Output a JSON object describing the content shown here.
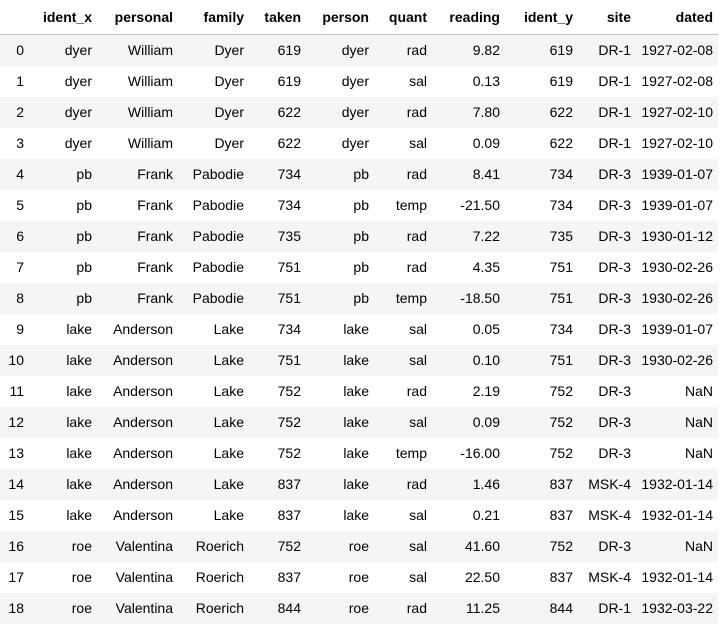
{
  "table": {
    "columns": [
      "",
      "ident_x",
      "personal",
      "family",
      "taken",
      "person",
      "quant",
      "reading",
      "ident_y",
      "site",
      "dated"
    ],
    "rows": [
      [
        "0",
        "dyer",
        "William",
        "Dyer",
        "619",
        "dyer",
        "rad",
        "9.82",
        "619",
        "DR-1",
        "1927-02-08"
      ],
      [
        "1",
        "dyer",
        "William",
        "Dyer",
        "619",
        "dyer",
        "sal",
        "0.13",
        "619",
        "DR-1",
        "1927-02-08"
      ],
      [
        "2",
        "dyer",
        "William",
        "Dyer",
        "622",
        "dyer",
        "rad",
        "7.80",
        "622",
        "DR-1",
        "1927-02-10"
      ],
      [
        "3",
        "dyer",
        "William",
        "Dyer",
        "622",
        "dyer",
        "sal",
        "0.09",
        "622",
        "DR-1",
        "1927-02-10"
      ],
      [
        "4",
        "pb",
        "Frank",
        "Pabodie",
        "734",
        "pb",
        "rad",
        "8.41",
        "734",
        "DR-3",
        "1939-01-07"
      ],
      [
        "5",
        "pb",
        "Frank",
        "Pabodie",
        "734",
        "pb",
        "temp",
        "-21.50",
        "734",
        "DR-3",
        "1939-01-07"
      ],
      [
        "6",
        "pb",
        "Frank",
        "Pabodie",
        "735",
        "pb",
        "rad",
        "7.22",
        "735",
        "DR-3",
        "1930-01-12"
      ],
      [
        "7",
        "pb",
        "Frank",
        "Pabodie",
        "751",
        "pb",
        "rad",
        "4.35",
        "751",
        "DR-3",
        "1930-02-26"
      ],
      [
        "8",
        "pb",
        "Frank",
        "Pabodie",
        "751",
        "pb",
        "temp",
        "-18.50",
        "751",
        "DR-3",
        "1930-02-26"
      ],
      [
        "9",
        "lake",
        "Anderson",
        "Lake",
        "734",
        "lake",
        "sal",
        "0.05",
        "734",
        "DR-3",
        "1939-01-07"
      ],
      [
        "10",
        "lake",
        "Anderson",
        "Lake",
        "751",
        "lake",
        "sal",
        "0.10",
        "751",
        "DR-3",
        "1930-02-26"
      ],
      [
        "11",
        "lake",
        "Anderson",
        "Lake",
        "752",
        "lake",
        "rad",
        "2.19",
        "752",
        "DR-3",
        "NaN"
      ],
      [
        "12",
        "lake",
        "Anderson",
        "Lake",
        "752",
        "lake",
        "sal",
        "0.09",
        "752",
        "DR-3",
        "NaN"
      ],
      [
        "13",
        "lake",
        "Anderson",
        "Lake",
        "752",
        "lake",
        "temp",
        "-16.00",
        "752",
        "DR-3",
        "NaN"
      ],
      [
        "14",
        "lake",
        "Anderson",
        "Lake",
        "837",
        "lake",
        "rad",
        "1.46",
        "837",
        "MSK-4",
        "1932-01-14"
      ],
      [
        "15",
        "lake",
        "Anderson",
        "Lake",
        "837",
        "lake",
        "sal",
        "0.21",
        "837",
        "MSK-4",
        "1932-01-14"
      ],
      [
        "16",
        "roe",
        "Valentina",
        "Roerich",
        "752",
        "roe",
        "sal",
        "41.60",
        "752",
        "DR-3",
        "NaN"
      ],
      [
        "17",
        "roe",
        "Valentina",
        "Roerich",
        "837",
        "roe",
        "sal",
        "22.50",
        "837",
        "MSK-4",
        "1932-01-14"
      ],
      [
        "18",
        "roe",
        "Valentina",
        "Roerich",
        "844",
        "roe",
        "rad",
        "11.25",
        "844",
        "DR-1",
        "1932-03-22"
      ]
    ]
  }
}
